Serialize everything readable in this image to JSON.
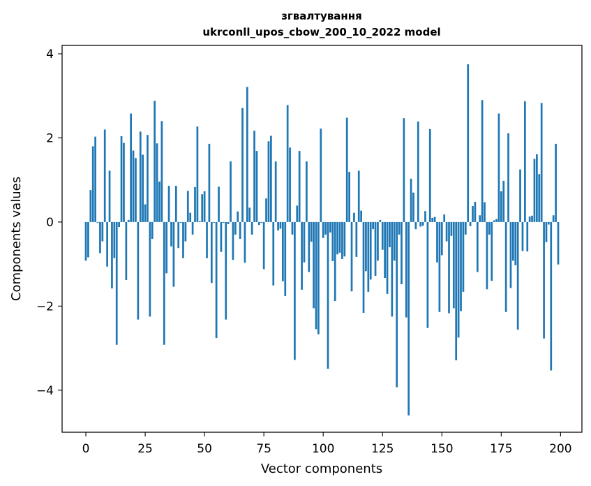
{
  "chart_data": {
    "type": "bar",
    "title_line1": "згвалтування",
    "title_line2": "ukrconll_upos_cbow_200_10_2022 model",
    "xlabel": "Vector components",
    "ylabel": "Components values",
    "xlim": [
      -10,
      209
    ],
    "ylim": [
      -5.0,
      4.2
    ],
    "xticks": [
      0,
      25,
      50,
      75,
      100,
      125,
      150,
      175,
      200
    ],
    "xtick_labels": [
      "0",
      "25",
      "50",
      "75",
      "100",
      "125",
      "150",
      "175",
      "200"
    ],
    "yticks": [
      -4,
      -2,
      0,
      2,
      4
    ],
    "ytick_labels": [
      "−4",
      "−2",
      "0",
      "2",
      "4"
    ],
    "bar_color": "#1f77b4",
    "values": [
      -0.92,
      -0.84,
      0.76,
      1.8,
      2.03,
      -0.02,
      -0.74,
      -0.46,
      2.2,
      -1.06,
      1.22,
      -1.58,
      -0.86,
      -2.92,
      -0.12,
      2.04,
      1.88,
      -1.38,
      0.05,
      2.58,
      1.7,
      1.52,
      -2.32,
      2.15,
      1.6,
      0.42,
      2.07,
      -2.25,
      -0.4,
      2.88,
      1.87,
      0.96,
      2.4,
      -2.92,
      -1.22,
      0.86,
      -0.58,
      -1.54,
      0.86,
      -0.62,
      -0.02,
      -0.86,
      -0.46,
      0.74,
      0.22,
      -0.3,
      0.83,
      2.27,
      0.02,
      0.66,
      0.73,
      -0.86,
      1.86,
      -1.45,
      -0.02,
      -2.76,
      0.84,
      -0.71,
      -0.02,
      -2.32,
      -0.05,
      1.44,
      -0.9,
      -0.3,
      0.25,
      -0.4,
      2.71,
      -0.97,
      3.21,
      0.34,
      -0.3,
      2.17,
      1.69,
      -0.07,
      -0.02,
      -1.12,
      0.56,
      1.92,
      2.05,
      -1.51,
      1.44,
      -0.2,
      -0.16,
      -1.41,
      -1.76,
      2.78,
      1.77,
      -0.3,
      -3.28,
      0.39,
      1.69,
      -1.61,
      -0.96,
      1.44,
      -1.19,
      -0.47,
      -2.05,
      -2.55,
      -2.67,
      2.22,
      -0.38,
      -0.3,
      -3.49,
      -0.25,
      -0.93,
      -1.88,
      -0.77,
      -0.73,
      -0.88,
      -0.82,
      2.48,
      1.19,
      -1.65,
      0.22,
      -0.83,
      1.22,
      0.27,
      -2.16,
      -1.17,
      -1.66,
      -1.37,
      -0.17,
      -1.28,
      -0.92,
      0.05,
      -0.66,
      -1.33,
      -1.71,
      -0.6,
      -2.25,
      -0.92,
      -3.93,
      -0.3,
      -1.48,
      2.47,
      -2.27,
      -4.6,
      1.03,
      0.7,
      -0.17,
      2.39,
      -0.11,
      -0.09,
      0.26,
      -2.52,
      2.21,
      0.1,
      0.12,
      -0.96,
      -2.14,
      -0.79,
      0.18,
      -0.46,
      -2.17,
      -0.33,
      -2.05,
      -3.29,
      -2.75,
      -2.12,
      -1.66,
      -0.3,
      3.75,
      -0.1,
      0.38,
      0.48,
      -1.19,
      0.16,
      2.9,
      0.47,
      -1.6,
      -0.3,
      -1.4,
      0.04,
      0.07,
      2.58,
      0.73,
      0.98,
      -2.14,
      2.11,
      -1.57,
      -0.92,
      -1.03,
      -2.56,
      1.25,
      -0.69,
      2.87,
      -0.7,
      0.13,
      0.15,
      1.5,
      1.61,
      1.14,
      2.83,
      -2.77,
      -0.48,
      -0.06,
      -3.53,
      0.16,
      1.86,
      -1.01
    ]
  }
}
